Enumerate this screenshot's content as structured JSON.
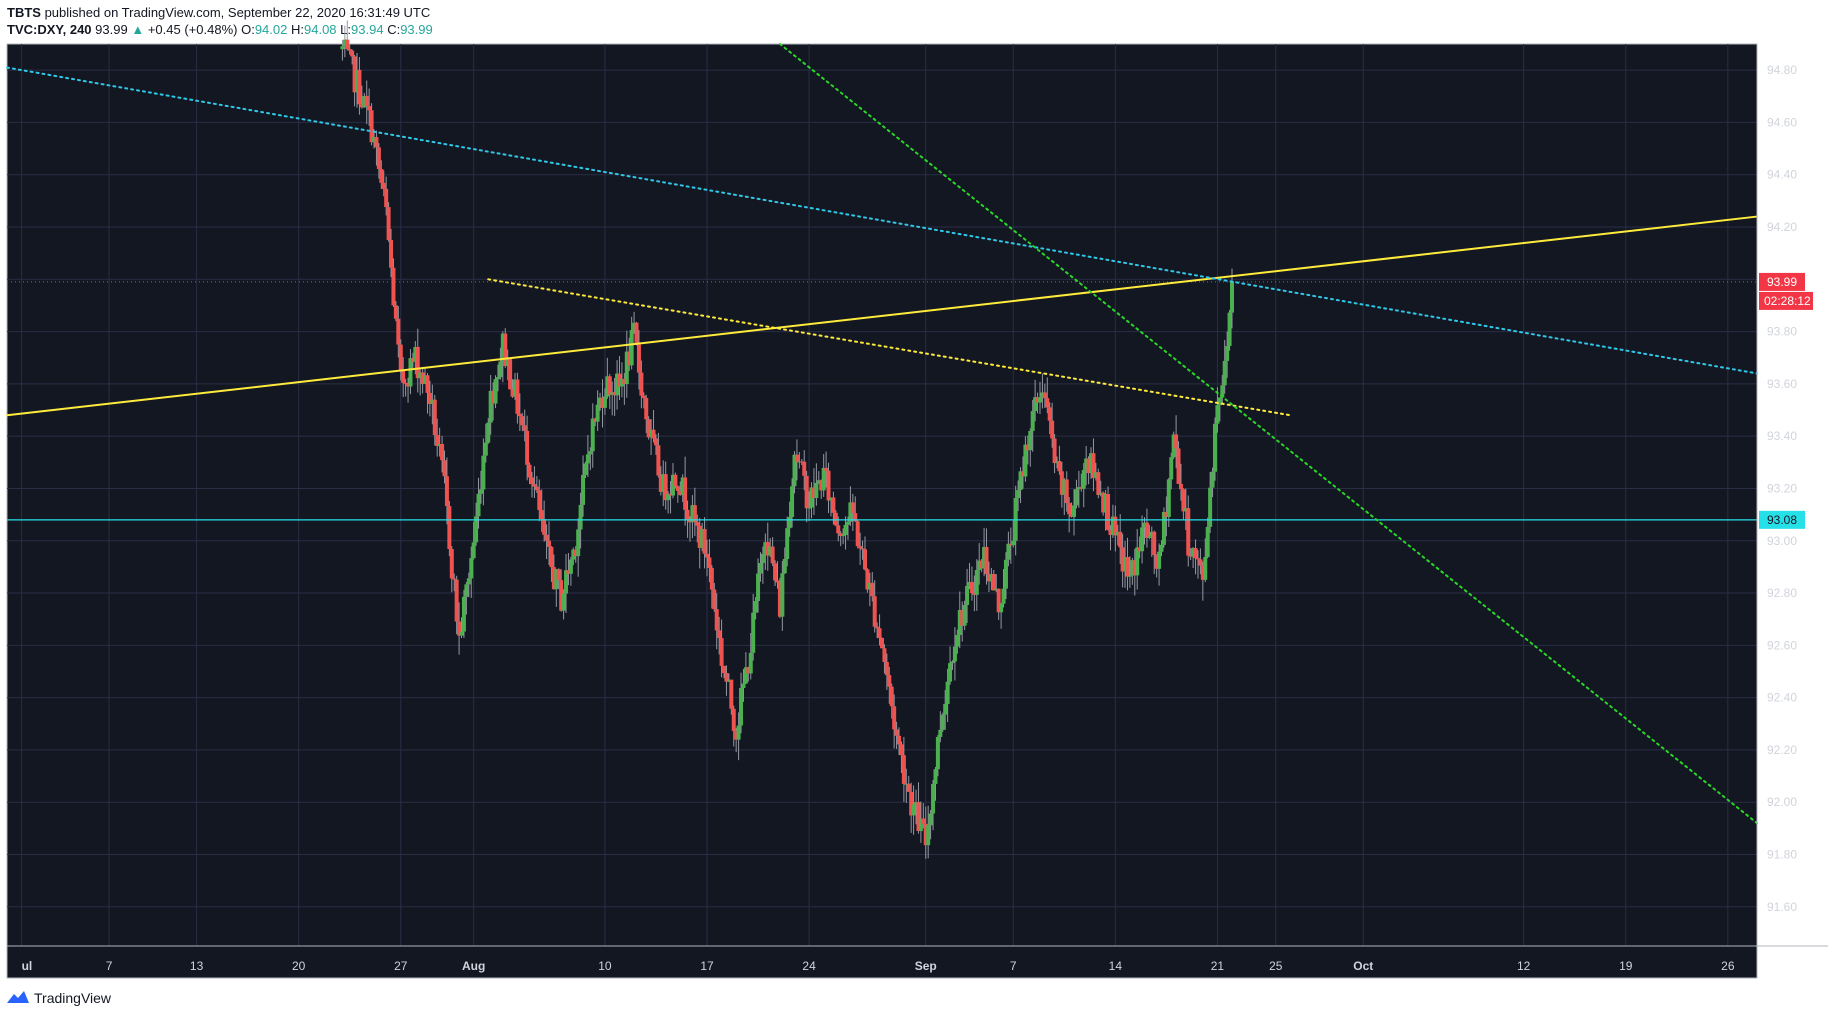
{
  "header": {
    "author": "TBTS",
    "published_text": "published on TradingView.com, September 22, 2020 16:31:49 UTC",
    "symbol": "TVC:DXY, 240",
    "last": "93.99",
    "change_arrow": "▲",
    "change": "+0.45 (+0.48%)",
    "o_label": "O:",
    "o_value": "94.02",
    "h_label": "H:",
    "h_value": "94.08",
    "l_label": "L:",
    "l_value": "93.94",
    "c_label": "C:",
    "c_value": "93.99"
  },
  "footer": {
    "brand": "TradingView",
    "logo_icon": "tradingview-logo-icon"
  },
  "price_badges": {
    "last_price": "93.99",
    "countdown": "02:28:12",
    "hline": "93.08"
  },
  "colors": {
    "background": "#131722",
    "grid": "#2a2e45",
    "up": "#4caf50",
    "down": "#ef5350",
    "trend_yellow": "#ffeb3b",
    "trend_cyan": "#2fc8e8",
    "trend_green": "#29d629",
    "hline": "#26e0e8",
    "last_price": "#f23645"
  },
  "chart_data": {
    "type": "candlestick",
    "symbol": "TVC:DXY",
    "interval": "240",
    "x_axis": {
      "ticks": [
        {
          "label": "ul",
          "date": "2020-07-01"
        },
        {
          "label": "7",
          "date": "2020-07-07"
        },
        {
          "label": "13",
          "date": "2020-07-13"
        },
        {
          "label": "20",
          "date": "2020-07-20"
        },
        {
          "label": "27",
          "date": "2020-07-27"
        },
        {
          "label": "Aug",
          "date": "2020-08-01"
        },
        {
          "label": "10",
          "date": "2020-08-10"
        },
        {
          "label": "17",
          "date": "2020-08-17"
        },
        {
          "label": "24",
          "date": "2020-08-24"
        },
        {
          "label": "Sep",
          "date": "2020-09-01"
        },
        {
          "label": "7",
          "date": "2020-09-07"
        },
        {
          "label": "14",
          "date": "2020-09-14"
        },
        {
          "label": "21",
          "date": "2020-09-21"
        },
        {
          "label": "25",
          "date": "2020-09-25"
        },
        {
          "label": "Oct",
          "date": "2020-10-01"
        },
        {
          "label": "12",
          "date": "2020-10-12"
        },
        {
          "label": "19",
          "date": "2020-10-19"
        },
        {
          "label": "26",
          "date": "2020-10-26"
        }
      ]
    },
    "y_axis": {
      "ylim": [
        91.45,
        94.9
      ],
      "ticks": [
        "94.80",
        "94.60",
        "94.40",
        "94.20",
        "94.00",
        "93.80",
        "93.60",
        "93.40",
        "93.20",
        "93.00",
        "92.80",
        "92.60",
        "92.40",
        "92.20",
        "92.00",
        "91.80",
        "91.60"
      ]
    },
    "price_path": [
      [
        "2020-07-23",
        94.88
      ],
      [
        "2020-07-24",
        94.75
      ],
      [
        "2020-07-25",
        94.58
      ],
      [
        "2020-07-26",
        94.25
      ],
      [
        "2020-07-27",
        93.6
      ],
      [
        "2020-07-28",
        93.7
      ],
      [
        "2020-07-29",
        93.55
      ],
      [
        "2020-07-30",
        93.2
      ],
      [
        "2020-07-31",
        92.62
      ],
      [
        "2020-08-01",
        93.0
      ],
      [
        "2020-08-02",
        93.5
      ],
      [
        "2020-08-03",
        93.75
      ],
      [
        "2020-08-04",
        93.52
      ],
      [
        "2020-08-05",
        93.25
      ],
      [
        "2020-08-06",
        92.95
      ],
      [
        "2020-08-07",
        92.78
      ],
      [
        "2020-08-08",
        93.0
      ],
      [
        "2020-08-09",
        93.4
      ],
      [
        "2020-08-10",
        93.6
      ],
      [
        "2020-08-11",
        93.58
      ],
      [
        "2020-08-12",
        93.78
      ],
      [
        "2020-08-13",
        93.42
      ],
      [
        "2020-08-14",
        93.2
      ],
      [
        "2020-08-15",
        93.25
      ],
      [
        "2020-08-16",
        93.08
      ],
      [
        "2020-08-17",
        92.95
      ],
      [
        "2020-08-18",
        92.55
      ],
      [
        "2020-08-19",
        92.28
      ],
      [
        "2020-08-20",
        92.6
      ],
      [
        "2020-08-21",
        93.05
      ],
      [
        "2020-08-22",
        92.75
      ],
      [
        "2020-08-23",
        93.35
      ],
      [
        "2020-08-24",
        93.15
      ],
      [
        "2020-08-25",
        93.25
      ],
      [
        "2020-08-26",
        93.05
      ],
      [
        "2020-08-27",
        93.1
      ],
      [
        "2020-08-28",
        92.85
      ],
      [
        "2020-08-29",
        92.6
      ],
      [
        "2020-08-30",
        92.25
      ],
      [
        "2020-08-31",
        92.0
      ],
      [
        "2020-09-01",
        91.85
      ],
      [
        "2020-09-02",
        92.3
      ],
      [
        "2020-09-03",
        92.65
      ],
      [
        "2020-09-04",
        92.8
      ],
      [
        "2020-09-05",
        92.95
      ],
      [
        "2020-09-06",
        92.75
      ],
      [
        "2020-09-07",
        93.05
      ],
      [
        "2020-09-08",
        93.4
      ],
      [
        "2020-09-09",
        93.6
      ],
      [
        "2020-09-10",
        93.25
      ],
      [
        "2020-09-11",
        93.1
      ],
      [
        "2020-09-12",
        93.32
      ],
      [
        "2020-09-13",
        93.2
      ],
      [
        "2020-09-14",
        93.0
      ],
      [
        "2020-09-15",
        92.85
      ],
      [
        "2020-09-16",
        93.05
      ],
      [
        "2020-09-17",
        92.9
      ],
      [
        "2020-09-18",
        93.4
      ],
      [
        "2020-09-19",
        93.0
      ],
      [
        "2020-09-20",
        92.85
      ],
      [
        "2020-09-21",
        93.55
      ],
      [
        "2020-09-21.5",
        93.65
      ],
      [
        "2020-09-22",
        93.99
      ]
    ],
    "horizontal_lines": [
      {
        "price": 93.99,
        "style": "dotted",
        "label": "93.99"
      },
      {
        "price": 93.08,
        "style": "solid",
        "label": "93.08"
      }
    ],
    "trend_lines": [
      {
        "style": "solid",
        "color": "yellow",
        "from": [
          "2020-06-30",
          93.48
        ],
        "to": [
          "2020-10-28",
          94.24
        ]
      },
      {
        "style": "dotted",
        "color": "cyan",
        "from": [
          "2020-06-30",
          94.81
        ],
        "to": [
          "2020-10-28",
          93.64
        ]
      },
      {
        "style": "dotted",
        "color": "yellow",
        "from": [
          "2020-08-02",
          94.0
        ],
        "to": [
          "2020-09-26",
          93.48
        ]
      },
      {
        "style": "dotted",
        "color": "green",
        "from": [
          "2020-08-22",
          94.9
        ],
        "to": [
          "2020-10-28",
          91.92
        ]
      }
    ],
    "last_price": 93.99,
    "countdown": "02:28:12",
    "title": "",
    "xlabel": "",
    "ylabel": ""
  }
}
